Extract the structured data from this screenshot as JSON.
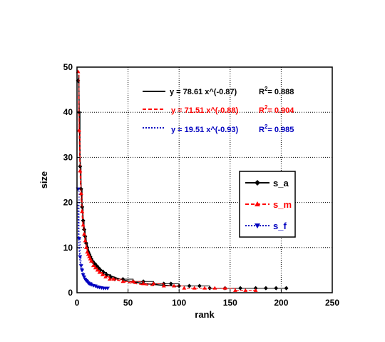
{
  "chart_data": {
    "type": "scatter",
    "xlabel": "rank",
    "ylabel": "size",
    "xlim": [
      0,
      250
    ],
    "ylim": [
      0,
      50
    ],
    "xticks": [
      "0",
      "50",
      "100",
      "150",
      "200",
      "250"
    ],
    "yticks": [
      "0",
      "10",
      "20",
      "30",
      "40",
      "50"
    ],
    "grid": true,
    "legend_position": "right",
    "fit_lines": [
      {
        "equation": "y = 78.61   x^(-0.87)",
        "r2_label": "R",
        "r2_sup": "2",
        "r2_value": "= 0.888",
        "color": "#000000",
        "coef": 78.61,
        "exponent": -0.87
      },
      {
        "equation": "y = 71.51   x^(-0.88)",
        "r2_label": "R",
        "r2_sup": "2",
        "r2_value": "= 0.904",
        "color": "#ff0000",
        "coef": 71.51,
        "exponent": -0.88
      },
      {
        "equation": "y = 19.51   x^(-0.93)",
        "r2_label": "R",
        "r2_sup": "2",
        "r2_value": "= 0.985",
        "color": "#0000c0",
        "coef": 19.51,
        "exponent": -0.93
      }
    ],
    "series": [
      {
        "name": "s_a",
        "color": "#000000",
        "marker": "diamond",
        "points": [
          [
            1,
            47
          ],
          [
            2,
            40
          ],
          [
            3,
            28
          ],
          [
            4,
            23
          ],
          [
            5,
            19
          ],
          [
            6,
            16
          ],
          [
            7,
            14
          ],
          [
            8,
            12.5
          ],
          [
            9,
            11
          ],
          [
            10,
            10
          ],
          [
            11,
            9
          ],
          [
            12,
            8.5
          ],
          [
            13,
            8
          ],
          [
            14,
            7.5
          ],
          [
            15,
            7
          ],
          [
            17,
            6.5
          ],
          [
            19,
            6
          ],
          [
            21,
            5.5
          ],
          [
            23,
            5
          ],
          [
            26,
            4.5
          ],
          [
            29,
            4
          ],
          [
            33,
            3.5
          ],
          [
            37,
            3
          ],
          [
            45,
            3
          ],
          [
            55,
            2.5
          ],
          [
            65,
            2.5
          ],
          [
            75,
            2
          ],
          [
            85,
            2
          ],
          [
            92,
            2
          ],
          [
            100,
            1.5
          ],
          [
            110,
            1.5
          ],
          [
            120,
            1.5
          ],
          [
            130,
            1
          ],
          [
            145,
            1
          ],
          [
            160,
            1
          ],
          [
            175,
            1
          ],
          [
            185,
            1
          ],
          [
            195,
            1
          ],
          [
            205,
            1
          ]
        ]
      },
      {
        "name": "s_m",
        "color": "#ff0000",
        "marker": "triangle-up",
        "points": [
          [
            1,
            49
          ],
          [
            2,
            36
          ],
          [
            3,
            27
          ],
          [
            4,
            22
          ],
          [
            5,
            18
          ],
          [
            6,
            15
          ],
          [
            7,
            13
          ],
          [
            8,
            11.5
          ],
          [
            9,
            10
          ],
          [
            10,
            9
          ],
          [
            11,
            8.5
          ],
          [
            12,
            8
          ],
          [
            13,
            7.5
          ],
          [
            14,
            7
          ],
          [
            16,
            6
          ],
          [
            18,
            5.5
          ],
          [
            20,
            5
          ],
          [
            22,
            4.5
          ],
          [
            25,
            4
          ],
          [
            28,
            3.5
          ],
          [
            32,
            3
          ],
          [
            36,
            3
          ],
          [
            45,
            2.5
          ],
          [
            55,
            2.5
          ],
          [
            65,
            2
          ],
          [
            75,
            2
          ],
          [
            85,
            1.5
          ],
          [
            95,
            1.5
          ],
          [
            105,
            1
          ],
          [
            115,
            1
          ],
          [
            125,
            1
          ],
          [
            135,
            1
          ],
          [
            145,
            1
          ],
          [
            155,
            0.5
          ],
          [
            165,
            0.5
          ],
          [
            175,
            0.5
          ]
        ]
      },
      {
        "name": "s_f",
        "color": "#0000c0",
        "marker": "triangle-down",
        "points": [
          [
            1,
            23
          ],
          [
            2,
            12
          ],
          [
            3,
            8
          ],
          [
            4,
            6
          ],
          [
            5,
            5
          ],
          [
            6,
            4
          ],
          [
            7,
            3.5
          ],
          [
            8,
            3
          ],
          [
            9,
            2.7
          ],
          [
            10,
            2.5
          ],
          [
            11,
            2.2
          ],
          [
            12,
            2
          ],
          [
            13,
            2
          ],
          [
            14,
            1.8
          ],
          [
            16,
            1.6
          ],
          [
            18,
            1.5
          ],
          [
            20,
            1.3
          ],
          [
            22,
            1.2
          ],
          [
            24,
            1.1
          ],
          [
            26,
            1
          ],
          [
            28,
            1
          ],
          [
            30,
            1
          ]
        ]
      }
    ]
  }
}
